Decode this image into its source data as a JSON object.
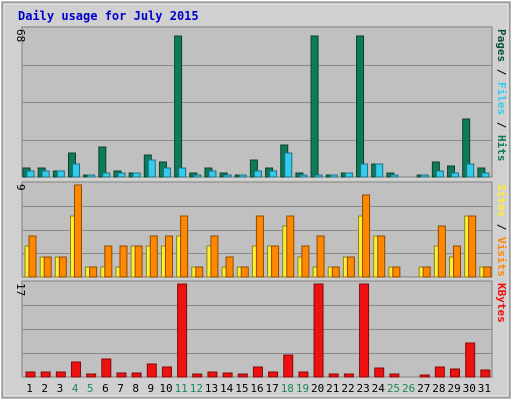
{
  "chart_data": {
    "type": "bar",
    "title": "Daily usage for July 2015",
    "categories": [
      "1",
      "2",
      "3",
      "4",
      "5",
      "6",
      "7",
      "8",
      "9",
      "10",
      "11",
      "12",
      "13",
      "14",
      "15",
      "16",
      "17",
      "18",
      "19",
      "20",
      "21",
      "22",
      "23",
      "24",
      "25",
      "26",
      "27",
      "28",
      "29",
      "30",
      "31"
    ],
    "weekend_days": [
      "4",
      "5",
      "11",
      "12",
      "18",
      "19",
      "25",
      "26"
    ],
    "panels": [
      {
        "id": "hits",
        "ymax_label": "68",
        "ylim": [
          0,
          68
        ],
        "legend": [
          "Pages",
          "Files",
          "Hits"
        ],
        "series": [
          {
            "name": "Hits",
            "color": "#0f7a5a",
            "values": [
              4,
              4,
              3,
              11,
              1,
              14,
              3,
              2,
              10,
              7,
              65,
              2,
              4,
              2,
              1,
              8,
              4,
              15,
              2,
              65,
              1,
              2,
              65,
              6,
              2,
              0,
              1,
              7,
              5,
              27,
              4
            ]
          },
          {
            "name": "Files",
            "color": "#33ccee",
            "values": [
              3,
              3,
              3,
              6,
              1,
              2,
              2,
              2,
              8,
              4,
              4,
              1,
              3,
              1,
              1,
              3,
              3,
              11,
              1,
              1,
              1,
              2,
              6,
              6,
              1,
              0,
              1,
              3,
              2,
              6,
              2
            ]
          },
          {
            "name": "Pages",
            "color": "#0e4f3a",
            "values": [
              0,
              0,
              0,
              0,
              0,
              0,
              0,
              0,
              0,
              0,
              0,
              0,
              0,
              0,
              0,
              0,
              0,
              0,
              0,
              0,
              0,
              0,
              0,
              0,
              0,
              0,
              0,
              0,
              0,
              0,
              0
            ]
          }
        ]
      },
      {
        "id": "visits",
        "ymax_label": "9",
        "ylim": [
          0,
          9
        ],
        "legend": [
          "Sites",
          "Visits"
        ],
        "series": [
          {
            "name": "Sites",
            "color": "#ffee33",
            "values": [
              3,
              2,
              2,
              6,
              1,
              1,
              1,
              3,
              3,
              3,
              4,
              1,
              3,
              1,
              1,
              3,
              3,
              5,
              2,
              1,
              1,
              2,
              6,
              4,
              1,
              0,
              1,
              3,
              2,
              6,
              1
            ]
          },
          {
            "name": "Visits",
            "color": "#ff8800",
            "values": [
              4,
              2,
              2,
              9,
              1,
              3,
              3,
              3,
              4,
              4,
              6,
              1,
              4,
              2,
              1,
              6,
              3,
              6,
              3,
              4,
              1,
              2,
              8,
              4,
              1,
              0,
              1,
              5,
              3,
              6,
              1
            ]
          }
        ]
      },
      {
        "id": "kbytes",
        "ymax_label": "17",
        "ylim": [
          0,
          17
        ],
        "legend": [
          "KBytes"
        ],
        "series": [
          {
            "name": "KBytes",
            "color": "#ee1111",
            "values": [
              1,
              1,
              1,
              2.7,
              0.5,
              3.3,
              0.8,
              0.8,
              2.4,
              1.8,
              17,
              0.6,
              1,
              0.8,
              0.5,
              1.8,
              1,
              4,
              0.9,
              17,
              0.5,
              0.5,
              17,
              1.6,
              0.5,
              0,
              0.4,
              1.8,
              1.5,
              6.3,
              1.2
            ]
          }
        ]
      }
    ],
    "colors": {
      "title": "#0000cc",
      "plot_bg": "#c0c0c0",
      "frame": "#b0b0b0",
      "weekend_tick": "#1a8a5a",
      "weekday_tick": "#000000"
    }
  }
}
